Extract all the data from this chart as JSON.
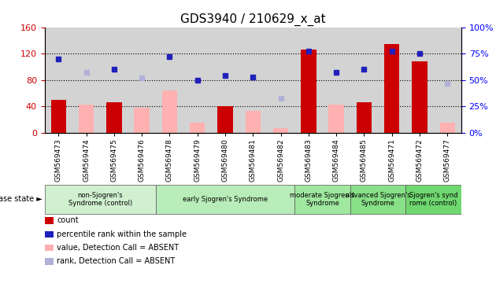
{
  "title": "GDS3940 / 210629_x_at",
  "samples": [
    "GSM569473",
    "GSM569474",
    "GSM569475",
    "GSM569476",
    "GSM569478",
    "GSM569479",
    "GSM569480",
    "GSM569481",
    "GSM569482",
    "GSM569483",
    "GSM569484",
    "GSM569485",
    "GSM569471",
    "GSM569472",
    "GSM569477"
  ],
  "count": [
    50,
    null,
    46,
    null,
    null,
    null,
    40,
    null,
    null,
    126,
    null,
    46,
    135,
    108,
    null
  ],
  "percentile_rank": [
    70,
    null,
    60,
    null,
    72,
    50,
    54,
    53,
    null,
    77,
    57,
    60,
    77,
    75,
    null
  ],
  "value_absent": [
    null,
    43,
    null,
    38,
    64,
    15,
    null,
    33,
    7,
    null,
    43,
    null,
    null,
    null,
    15
  ],
  "rank_absent": [
    null,
    57,
    null,
    52,
    null,
    null,
    null,
    null,
    33,
    null,
    null,
    null,
    null,
    null,
    47
  ],
  "disease_groups": [
    {
      "label": "non-Sjogren's\nSyndrome (control)",
      "start": 0,
      "end": 4
    },
    {
      "label": "early Sjogren's Syndrome",
      "start": 4,
      "end": 9
    },
    {
      "label": "moderate Sjogren's\nSyndrome",
      "start": 9,
      "end": 11
    },
    {
      "label": "advanced Sjogren's\nSyndrome",
      "start": 11,
      "end": 13
    },
    {
      "label": "Sjogren's synd\nrome (control)",
      "start": 13,
      "end": 15
    }
  ],
  "group_colors": [
    "#d0f0d0",
    "#b8ecb8",
    "#a0e8a0",
    "#88e088",
    "#70d870"
  ],
  "ylim_left": [
    0,
    160
  ],
  "ylim_right": [
    0,
    100
  ],
  "yticks_left": [
    0,
    40,
    80,
    120,
    160
  ],
  "yticks_right": [
    0,
    25,
    50,
    75,
    100
  ],
  "count_color": "#cc0000",
  "percentile_color": "#2020bb",
  "value_absent_color": "#ffb0b0",
  "rank_absent_color": "#b0b0d8",
  "bg_color": "#d3d3d3",
  "plot_bg": "#ffffff",
  "grid_ticks": [
    40,
    80,
    120
  ]
}
